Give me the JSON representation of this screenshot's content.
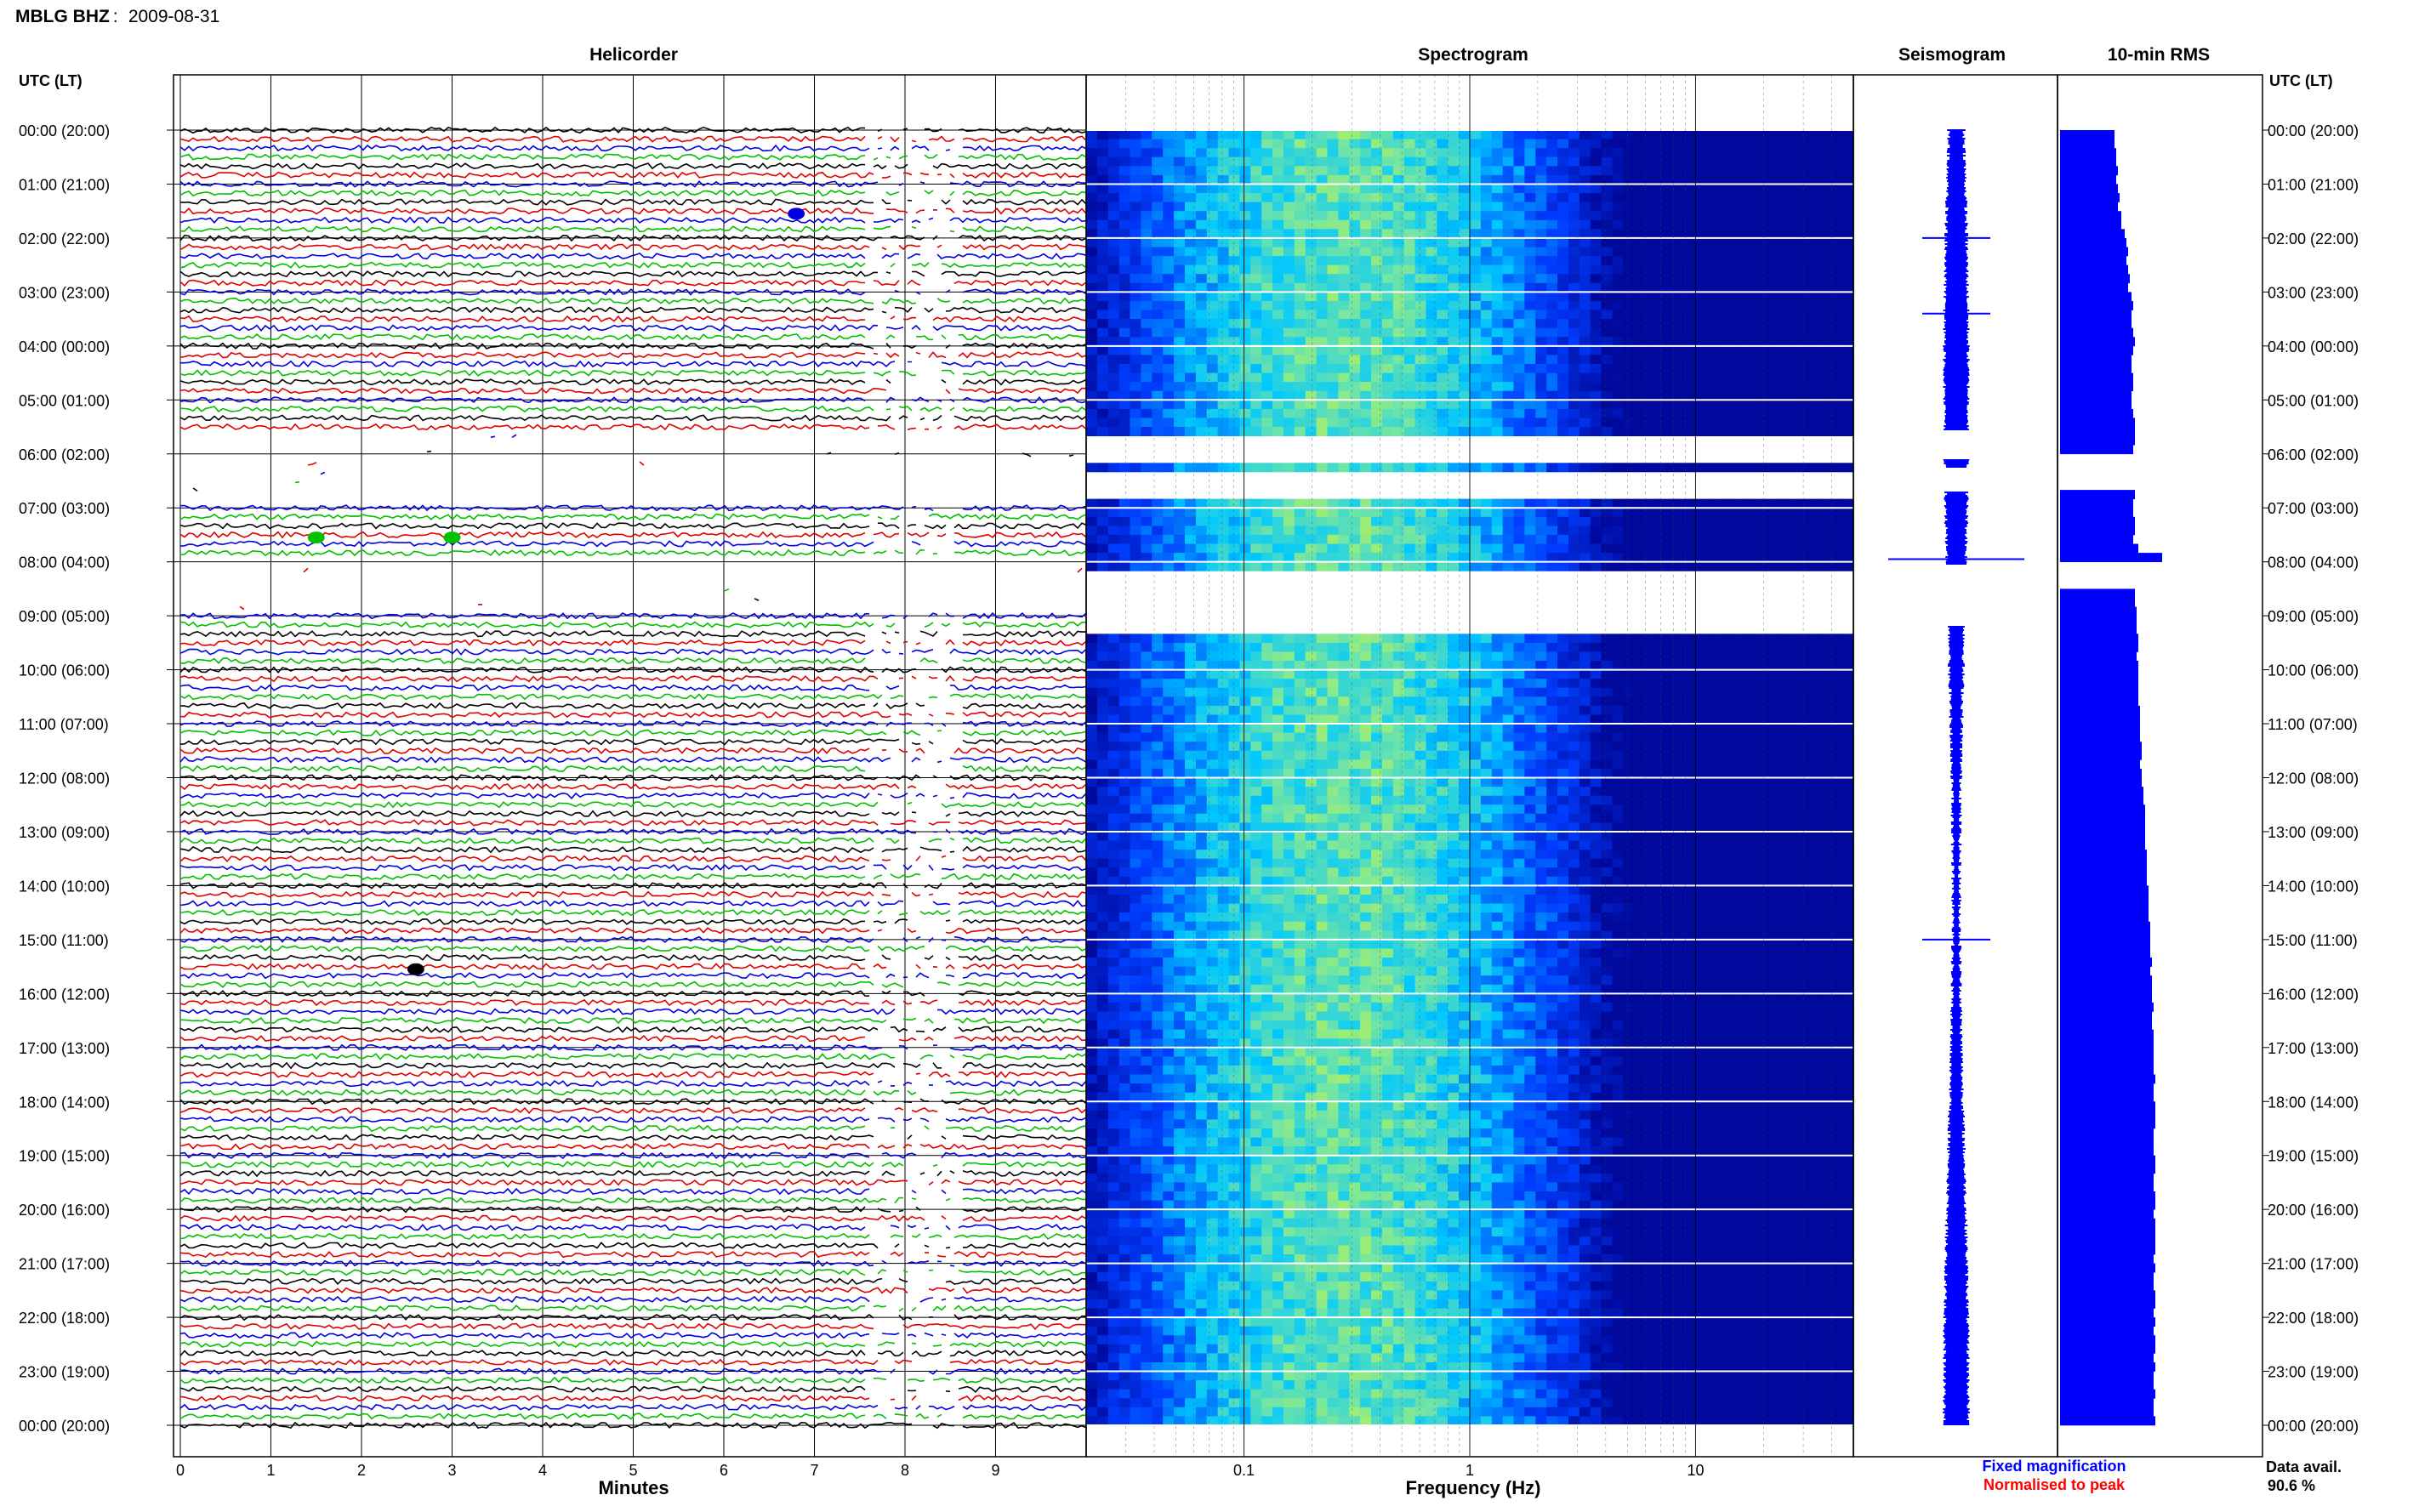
{
  "header": {
    "station": "MBLG BHZ",
    "date": "2009-08-31"
  },
  "chart_data": {
    "type": "heatmap",
    "panels": [
      "Helicorder",
      "Spectrogram",
      "Seismogram",
      "10-min RMS"
    ],
    "time_axis": {
      "left_label": "UTC (LT)",
      "right_label": "UTC (LT)",
      "tick_labels": [
        "00:00 (20:00)",
        "01:00 (21:00)",
        "02:00 (22:00)",
        "03:00 (23:00)",
        "04:00 (00:00)",
        "05:00 (01:00)",
        "06:00 (02:00)",
        "07:00 (03:00)",
        "08:00 (04:00)",
        "09:00 (05:00)",
        "10:00 (06:00)",
        "11:00 (07:00)",
        "12:00 (08:00)",
        "13:00 (09:00)",
        "14:00 (10:00)",
        "15:00 (11:00)",
        "16:00 (12:00)",
        "17:00 (13:00)",
        "18:00 (14:00)",
        "19:00 (15:00)",
        "20:00 (16:00)",
        "21:00 (17:00)",
        "22:00 (18:00)",
        "23:00 (19:00)",
        "00:00 (20:00)"
      ]
    },
    "helicorder": {
      "xlabel": "Minutes",
      "xticks": [
        "0",
        "1",
        "2",
        "3",
        "4",
        "5",
        "6",
        "7",
        "8",
        "9"
      ],
      "xlim": [
        0,
        10
      ],
      "trace_colors": [
        "#000000",
        "#e00000",
        "#0000e0",
        "#00c000"
      ],
      "traces_per_hour": 6,
      "events": [
        {
          "hour": 1,
          "minute": 6.8,
          "color": "blue"
        },
        {
          "hour": 7,
          "minute": 1.5,
          "color": "green"
        },
        {
          "hour": 7,
          "minute": 3.0,
          "color": "green"
        },
        {
          "hour": 15,
          "minute": 2.6,
          "color": "black"
        }
      ]
    },
    "spectrogram": {
      "xlabel": "Frequency (Hz)",
      "xticks": [
        "0.1",
        "1",
        "10"
      ],
      "xscale": "log",
      "xlim": [
        0.02,
        50
      ]
    },
    "seismogram": {
      "spike_hours": [
        2.0,
        3.4,
        7.95,
        15.0
      ]
    },
    "rms": {
      "values": [
        0.32,
        0.32,
        0.33,
        0.33,
        0.34,
        0.33,
        0.34,
        0.35,
        0.34,
        0.36,
        0.36,
        0.38,
        0.39,
        0.4,
        0.39,
        0.4,
        0.41,
        0.4,
        0.42,
        0.43,
        0.42,
        0.42,
        0.43,
        0.44,
        0.43,
        0.42,
        0.42,
        0.43,
        0.43,
        0.42,
        0.42,
        0.43,
        0.44,
        0.44,
        0.44,
        0.43,
        null,
        null,
        null,
        null,
        0.44,
        0.43,
        0.43,
        0.44,
        0.44,
        0.43,
        0.46,
        0.6,
        null,
        null,
        null,
        0.44,
        0.44,
        0.45,
        0.45,
        0.45,
        0.46,
        0.46,
        0.45,
        0.46,
        0.46,
        0.46,
        0.46,
        0.46,
        0.47,
        0.47,
        0.47,
        0.47,
        0.48,
        0.48,
        0.47,
        0.48,
        0.48,
        0.49,
        0.49,
        0.5,
        0.5,
        0.5,
        0.5,
        0.5,
        0.51,
        0.51,
        0.51,
        0.51,
        0.52,
        0.52,
        0.52,
        0.52,
        0.53,
        0.53,
        0.53,
        0.53,
        0.54,
        0.53,
        0.54,
        0.54,
        0.54,
        0.55,
        0.54,
        0.54,
        0.55,
        0.55,
        0.55,
        0.55,
        0.55,
        0.56,
        0.55,
        0.55,
        0.56,
        0.56,
        0.56,
        0.55,
        0.55,
        0.55,
        0.56,
        0.56,
        0.55,
        0.55,
        0.56,
        0.56,
        0.55,
        0.56,
        0.56,
        0.56,
        0.56,
        0.55,
        0.56,
        0.55,
        0.55,
        0.56,
        0.56,
        0.55,
        0.56,
        0.55,
        0.56,
        0.56,
        0.55,
        0.56,
        0.55,
        0.55,
        0.56,
        0.55,
        0.55,
        0.56
      ]
    },
    "legend": {
      "fixed": {
        "label": "Fixed magnification",
        "color": "#0000ff"
      },
      "normalised": {
        "label": "Normalised to peak",
        "color": "#ff0000"
      }
    },
    "data_availability": {
      "label": "Data avail.",
      "value": "90.6 %"
    }
  },
  "colors": {
    "trace_fill": "#0000ff",
    "spectrogram_low": "#0000a0",
    "spectrogram_mid": "#00c8ff",
    "spectrogram_high": "#ffff00"
  }
}
